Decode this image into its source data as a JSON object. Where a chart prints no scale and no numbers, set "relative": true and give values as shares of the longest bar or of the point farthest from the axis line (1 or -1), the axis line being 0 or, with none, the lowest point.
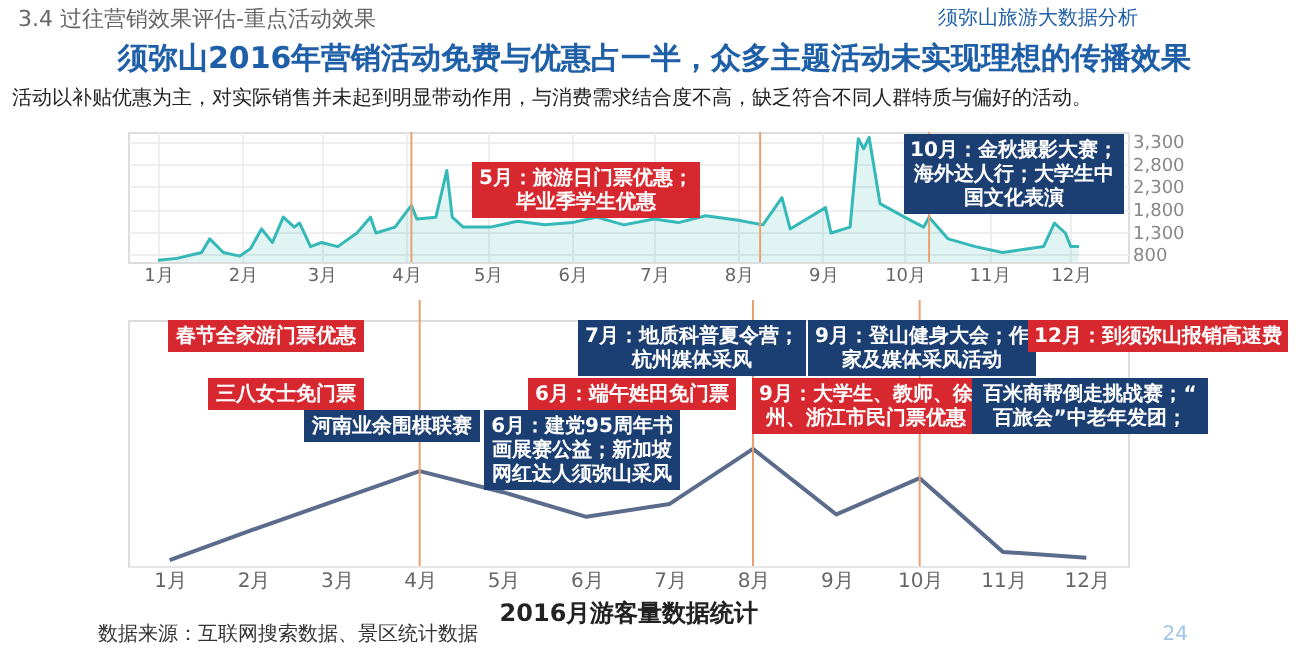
{
  "chart_data": [
    {
      "type": "area",
      "title": "须弥山2016年营销活动免费与优惠占一半，众多主题活动未实现理想的传播效果",
      "subtitle": "活动以补贴优惠为主，对实际销售并未起到明显带动作用，与消费需求结合度不高，缺乏符合不同人群特质与偏好的活动。",
      "x": [
        "2016-01-01",
        "2016-01-08",
        "2016-01-17",
        "2016-01-20",
        "2016-01-25",
        "2016-01-31",
        "2016-02-04",
        "2016-02-08",
        "2016-02-12",
        "2016-02-16",
        "2016-02-20",
        "2016-02-22",
        "2016-02-26",
        "2016-03-01",
        "2016-03-07",
        "2016-03-14",
        "2016-03-19",
        "2016-03-21",
        "2016-03-28",
        "2016-04-03",
        "2016-04-05",
        "2016-04-12",
        "2016-04-16",
        "2016-04-18",
        "2016-04-22",
        "2016-05-02",
        "2016-05-12",
        "2016-05-22",
        "2016-06-01",
        "2016-06-10",
        "2016-06-20",
        "2016-07-01",
        "2016-07-10",
        "2016-07-20",
        "2016-08-01",
        "2016-08-10",
        "2016-08-17",
        "2016-08-20",
        "2016-09-02",
        "2016-09-04",
        "2016-09-11",
        "2016-09-14",
        "2016-09-16",
        "2016-09-18",
        "2016-09-22",
        "2016-10-01",
        "2016-10-08",
        "2016-10-10",
        "2016-10-17",
        "2016-10-27",
        "2016-11-06",
        "2016-11-21",
        "2016-11-25",
        "2016-11-29",
        "2016-12-01",
        "2016-12-04"
      ],
      "series": [
        {
          "color": "#35b8b8",
          "values": [
            670,
            710,
            840,
            1140,
            840,
            760,
            930,
            1360,
            1060,
            1620,
            1400,
            1490,
            970,
            1060,
            970,
            1270,
            1620,
            1270,
            1400,
            1880,
            1580,
            1620,
            2650,
            1620,
            1400,
            1400,
            1530,
            1450,
            1500,
            1620,
            1450,
            1580,
            1500,
            1650,
            1550,
            1450,
            2050,
            1360,
            1830,
            1270,
            1400,
            3350,
            3130,
            3380,
            1920,
            1620,
            1400,
            1620,
            1140,
            970,
            840,
            970,
            1490,
            1270,
            970,
            970
          ]
        }
      ],
      "xlim": [
        "2015-12-21",
        "2016-12-22"
      ],
      "xticks": [
        {
          "value": "2016-01-01",
          "label": "1月"
        },
        {
          "value": "2016-02-01",
          "label": "2月"
        },
        {
          "value": "2016-03-01",
          "label": "3月"
        },
        {
          "value": "2016-04-01",
          "label": "4月"
        },
        {
          "value": "2016-05-01",
          "label": "5月"
        },
        {
          "value": "2016-06-01",
          "label": "6月"
        },
        {
          "value": "2016-07-01",
          "label": "7月"
        },
        {
          "value": "2016-08-01",
          "label": "8月"
        },
        {
          "value": "2016-09-01",
          "label": "9月"
        },
        {
          "value": "2016-10-01",
          "label": "10月"
        },
        {
          "value": "2016-11-01",
          "label": "11月"
        },
        {
          "value": "2016-12-01",
          "label": "12月"
        }
      ],
      "ylim": [
        630,
        3500
      ],
      "yticks": [
        800,
        {
          "value": 1300,
          "label": "1,300"
        },
        {
          "value": 1800,
          "label": "1,800"
        },
        {
          "value": 2300,
          "label": "2,300"
        },
        {
          "value": 2800,
          "label": "2,800"
        },
        {
          "value": 3300,
          "label": "3,300"
        }
      ],
      "grid": true,
      "legend": false,
      "ref_lines": [
        {
          "axis": "x",
          "value": "2016-04-03",
          "color": "#e9a070"
        },
        {
          "axis": "x",
          "value": "2016-08-09",
          "color": "#e9a070"
        },
        {
          "axis": "x",
          "value": "2016-10-10",
          "color": "#e9a070"
        }
      ],
      "annotations": [
        "3.4 过往营销效果评估-重点活动效果",
        "须弥山旅游大数据分析",
        "5月：旅游日门票优惠；毕业季学生优惠",
        "10月：金秋摄影大赛；海外达人行；大学生中国文化表演"
      ]
    },
    {
      "type": "line",
      "relative": true,
      "xlabel": "2016月游客量数据统计",
      "categories": [
        "1月",
        "2月",
        "3月",
        "4月",
        "5月",
        "6月",
        "7月",
        "8月",
        "9月",
        "10月",
        "11月",
        "12月"
      ],
      "series": [
        {
          "color": "#5a6b8c",
          "values": [
            0.05,
            0.31,
            0.56,
            0.81,
            0.63,
            0.42,
            0.53,
            1,
            0.44,
            0.75,
            0.12,
            0.07
          ]
        }
      ],
      "grid": false,
      "legend": false,
      "marker": "none",
      "ref_lines": [
        {
          "axis": "x",
          "value": "4月",
          "color": "#e9a070"
        },
        {
          "axis": "x",
          "value": "8月",
          "color": "#e9a070"
        },
        {
          "axis": "x",
          "value": "10月",
          "color": "#e9a070"
        }
      ],
      "annotations": [
        "春节全家游门票优惠",
        "7月：地质科普夏令营；杭州媒体采风",
        "9月：登山健身大会；作家及媒体采风活动",
        "12月：到须弥山报销高速费",
        "三八女士免门票",
        "6月：端午姓田免门票",
        "9月：大学生、教师、徐州、浙江市民门票优惠",
        "百米商帮倒走挑战赛；“百旅会”中老年发团；",
        "河南业余围棋联赛",
        "6月：建党95周年书画展赛公益；新加坡网红达人须弥山采风",
        "数据来源：互联网搜索数据、景区统计数据",
        "24"
      ]
    }
  ]
}
